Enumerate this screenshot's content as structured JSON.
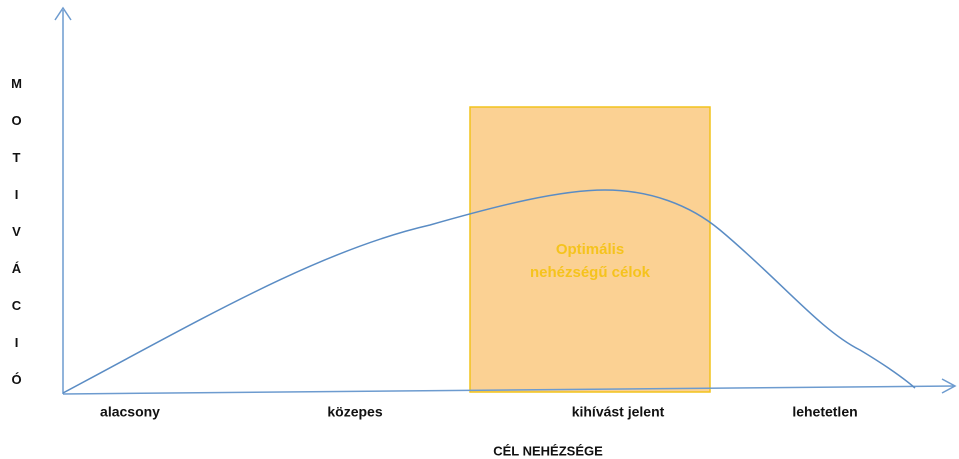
{
  "y_axis_label": "MOTIVÁCIÓ",
  "x_axis_label": "CÉL NEHÉZSÉGE",
  "categories": [
    "alacsony",
    "közepes",
    "kihívást jelent",
    "lehetetlen"
  ],
  "box_label": [
    "Optimális",
    "nehézségű célok"
  ]
}
